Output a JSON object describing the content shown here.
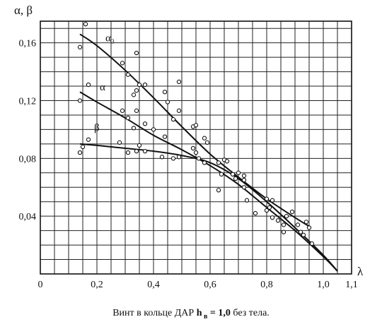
{
  "chart_data": {
    "type": "scatter",
    "y_title": "α, β",
    "x_title": "λ",
    "xlim": [
      0,
      1.1
    ],
    "ylim": [
      0,
      0.175
    ],
    "x_ticks": [
      0,
      0.2,
      0.4,
      0.6,
      0.8,
      1.0,
      1.1
    ],
    "x_tick_labels": [
      "0",
      "0,2",
      "0,4",
      "0,6",
      "0,8",
      "1,0",
      "1,1"
    ],
    "y_ticks": [
      0.04,
      0.08,
      0.12,
      0.16
    ],
    "y_tick_labels": [
      "0,04",
      "0,08",
      "0,12",
      "0,16"
    ],
    "x_grid_step": 0.05,
    "y_grid_step": 0.01,
    "grid": true,
    "curves": [
      {
        "name": "α₃",
        "label_at": [
          0.23,
          0.161
        ],
        "x": [
          0.14,
          0.2,
          0.3,
          0.4,
          0.5,
          0.6,
          0.7,
          0.8,
          0.9,
          0.95
        ],
        "y": [
          0.166,
          0.158,
          0.141,
          0.122,
          0.102,
          0.083,
          0.067,
          0.052,
          0.039,
          0.033
        ]
      },
      {
        "name": "α",
        "label_at": [
          0.21,
          0.127
        ],
        "x": [
          0.14,
          0.2,
          0.3,
          0.4,
          0.5,
          0.6,
          0.7,
          0.8,
          0.9,
          1.0,
          1.05
        ],
        "y": [
          0.126,
          0.119,
          0.108,
          0.096,
          0.086,
          0.075,
          0.062,
          0.046,
          0.03,
          0.012,
          0.002
        ]
      },
      {
        "name": "β",
        "label_at": [
          0.19,
          0.099
        ],
        "x": [
          0.14,
          0.2,
          0.3,
          0.4,
          0.5,
          0.6,
          0.7,
          0.8,
          0.9,
          1.0,
          1.05
        ],
        "y": [
          0.09,
          0.089,
          0.087,
          0.085,
          0.082,
          0.077,
          0.066,
          0.05,
          0.032,
          0.013,
          0.002
        ]
      }
    ],
    "points": [
      [
        0.16,
        0.173
      ],
      [
        0.14,
        0.157
      ],
      [
        0.14,
        0.12
      ],
      [
        0.17,
        0.131
      ],
      [
        0.15,
        0.088
      ],
      [
        0.14,
        0.084
      ],
      [
        0.17,
        0.093
      ],
      [
        0.29,
        0.146
      ],
      [
        0.29,
        0.113
      ],
      [
        0.28,
        0.091
      ],
      [
        0.31,
        0.138
      ],
      [
        0.31,
        0.108
      ],
      [
        0.31,
        0.084
      ],
      [
        0.34,
        0.153
      ],
      [
        0.33,
        0.124
      ],
      [
        0.34,
        0.127
      ],
      [
        0.35,
        0.131
      ],
      [
        0.34,
        0.113
      ],
      [
        0.33,
        0.101
      ],
      [
        0.34,
        0.085
      ],
      [
        0.35,
        0.089
      ],
      [
        0.37,
        0.131
      ],
      [
        0.37,
        0.104
      ],
      [
        0.37,
        0.085
      ],
      [
        0.4,
        0.1
      ],
      [
        0.44,
        0.126
      ],
      [
        0.44,
        0.095
      ],
      [
        0.43,
        0.081
      ],
      [
        0.45,
        0.119
      ],
      [
        0.47,
        0.107
      ],
      [
        0.47,
        0.08
      ],
      [
        0.49,
        0.133
      ],
      [
        0.49,
        0.113
      ],
      [
        0.49,
        0.081
      ],
      [
        0.54,
        0.102
      ],
      [
        0.54,
        0.087
      ],
      [
        0.55,
        0.103
      ],
      [
        0.55,
        0.084
      ],
      [
        0.56,
        0.08
      ],
      [
        0.58,
        0.094
      ],
      [
        0.59,
        0.091
      ],
      [
        0.58,
        0.077
      ],
      [
        0.63,
        0.077
      ],
      [
        0.63,
        0.058
      ],
      [
        0.64,
        0.069
      ],
      [
        0.65,
        0.079
      ],
      [
        0.66,
        0.078
      ],
      [
        0.68,
        0.069
      ],
      [
        0.69,
        0.066
      ],
      [
        0.7,
        0.07
      ],
      [
        0.72,
        0.068
      ],
      [
        0.72,
        0.065
      ],
      [
        0.72,
        0.06
      ],
      [
        0.73,
        0.051
      ],
      [
        0.76,
        0.042
      ],
      [
        0.8,
        0.052
      ],
      [
        0.8,
        0.044
      ],
      [
        0.81,
        0.046
      ],
      [
        0.82,
        0.039
      ],
      [
        0.82,
        0.051
      ],
      [
        0.84,
        0.037
      ],
      [
        0.86,
        0.034
      ],
      [
        0.86,
        0.029
      ],
      [
        0.87,
        0.04
      ],
      [
        0.89,
        0.043
      ],
      [
        0.91,
        0.034
      ],
      [
        0.92,
        0.029
      ],
      [
        0.93,
        0.027
      ],
      [
        0.94,
        0.036
      ],
      [
        0.95,
        0.032
      ],
      [
        0.96,
        0.021
      ]
    ],
    "caption": {
      "prefix": "Винт в кольце ДАР ",
      "bold_main": "h",
      "bold_sub": "в",
      "bold_eq": " = 1,0",
      "suffix": " без тела."
    }
  }
}
